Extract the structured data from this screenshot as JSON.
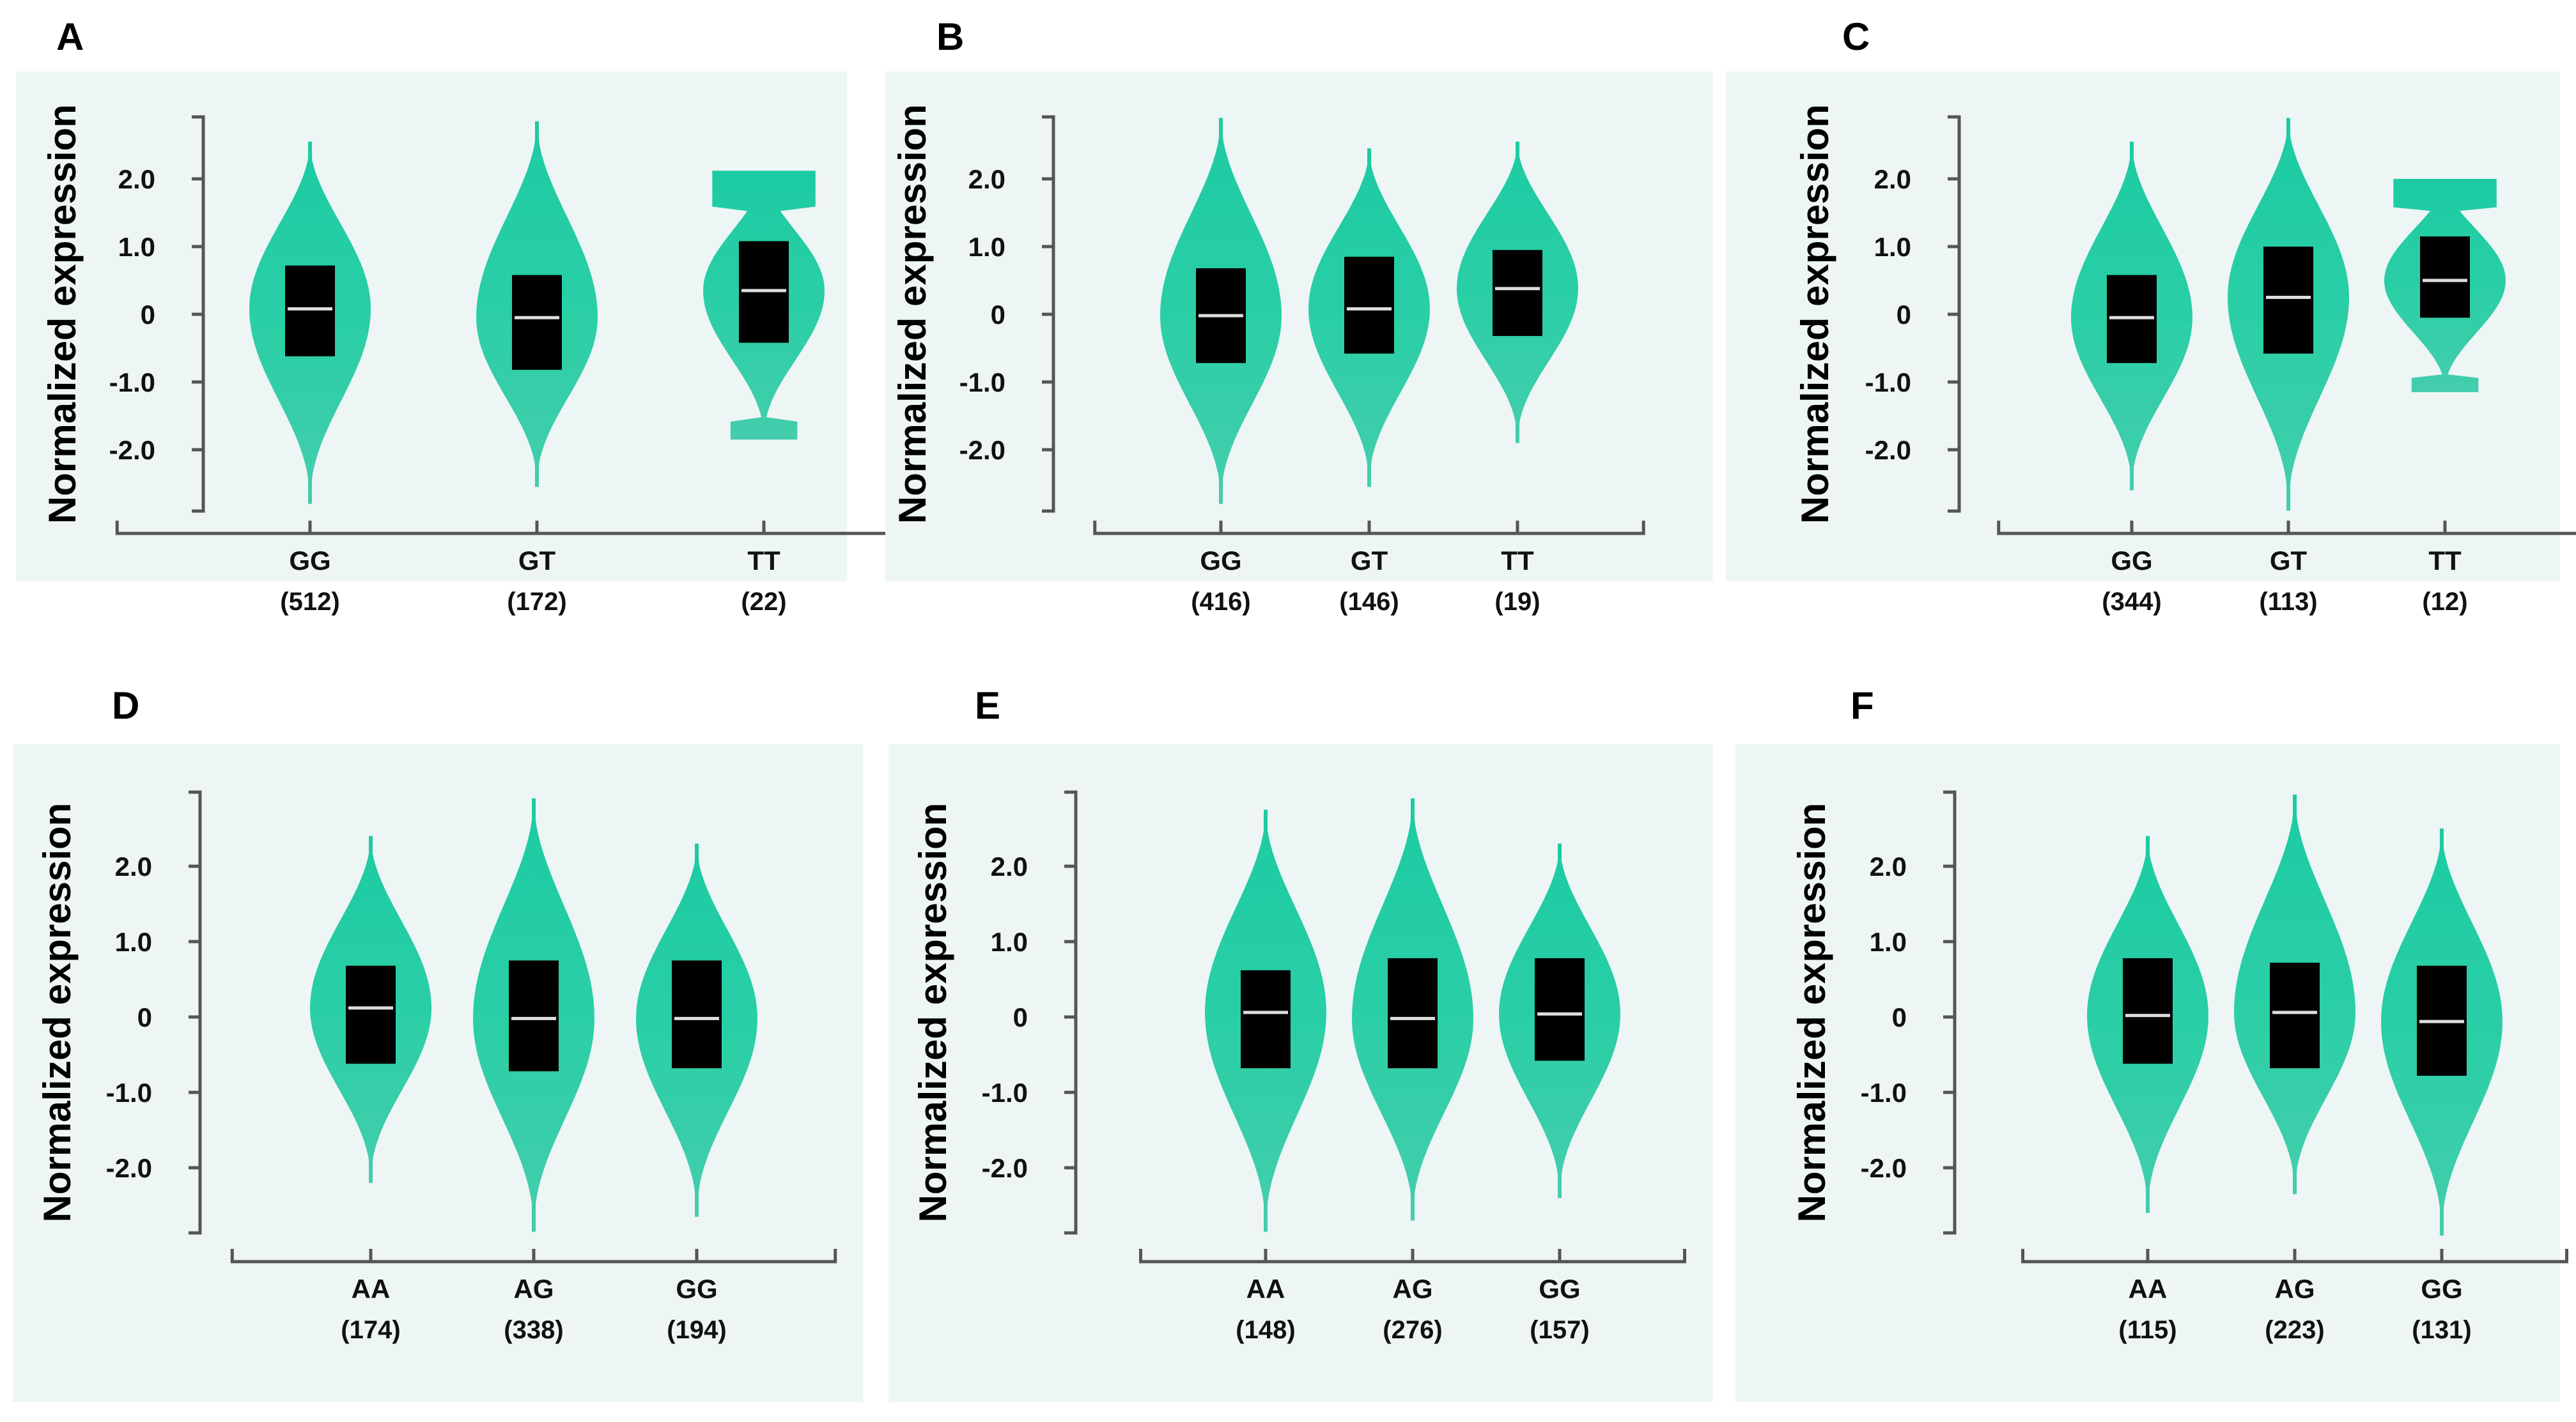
{
  "colors": {
    "violin_top": "#1ccba3",
    "violin_bottom": "#3fcfaa",
    "panel_background": "#eef5f5",
    "box_fill": "#000000",
    "median_line": "#dddddd",
    "axis": "#555555"
  },
  "chart_data": [
    {
      "panel": "A",
      "type": "violin",
      "ylabel": "Normalized expression",
      "ylim": [
        -2.9,
        2.9
      ],
      "yticks": [
        2.0,
        1.0,
        0,
        -1.0,
        -2.0
      ],
      "ytick_labels": [
        "2.0",
        "1.0",
        "0",
        "-1.0",
        "-2.0"
      ],
      "categories": [
        "GG",
        "GT",
        "TT"
      ],
      "counts": [
        "(512)",
        "(172)",
        "(22)"
      ],
      "groups": [
        {
          "min": -2.8,
          "max": 2.55,
          "q1": -0.62,
          "q3": 0.72,
          "median": 0.08
        },
        {
          "min": -2.55,
          "max": 2.85,
          "q1": -0.82,
          "q3": 0.58,
          "median": -0.05
        },
        {
          "min": -1.85,
          "max": 2.12,
          "q1": -0.42,
          "q3": 1.08,
          "median": 0.35
        }
      ]
    },
    {
      "panel": "B",
      "type": "violin",
      "ylabel": "Normalized expression",
      "ylim": [
        -2.9,
        2.9
      ],
      "yticks": [
        2.0,
        1.0,
        0,
        -1.0,
        -2.0
      ],
      "ytick_labels": [
        "2.0",
        "1.0",
        "0",
        "-1.0",
        "-2.0"
      ],
      "categories": [
        "GG",
        "GT",
        "TT"
      ],
      "counts": [
        "(416)",
        "(146)",
        "(19)"
      ],
      "groups": [
        {
          "min": -2.8,
          "max": 2.9,
          "q1": -0.72,
          "q3": 0.68,
          "median": -0.02
        },
        {
          "min": -2.55,
          "max": 2.45,
          "q1": -0.58,
          "q3": 0.85,
          "median": 0.08
        },
        {
          "min": -1.9,
          "max": 2.55,
          "q1": -0.32,
          "q3": 0.95,
          "median": 0.38
        }
      ]
    },
    {
      "panel": "C",
      "type": "violin",
      "ylabel": "Normalized expression",
      "ylim": [
        -2.9,
        2.9
      ],
      "yticks": [
        2.0,
        1.0,
        0,
        -1.0,
        -2.0
      ],
      "ytick_labels": [
        "2.0",
        "1.0",
        "0",
        "-1.0",
        "-2.0"
      ],
      "categories": [
        "GG",
        "GT",
        "TT"
      ],
      "counts": [
        "(344)",
        "(113)",
        "(12)"
      ],
      "groups": [
        {
          "min": -2.6,
          "max": 2.55,
          "q1": -0.72,
          "q3": 0.58,
          "median": -0.05
        },
        {
          "min": -2.9,
          "max": 2.9,
          "q1": -0.58,
          "q3": 1.0,
          "median": 0.25
        },
        {
          "min": -1.15,
          "max": 2.0,
          "q1": -0.05,
          "q3": 1.15,
          "median": 0.5
        }
      ]
    },
    {
      "panel": "D",
      "type": "violin",
      "ylabel": "Normalized expression",
      "ylim": [
        -2.9,
        2.9
      ],
      "yticks": [
        2.0,
        1.0,
        0,
        -1.0,
        -2.0
      ],
      "ytick_labels": [
        "2.0",
        "1.0",
        "0",
        "-1.0",
        "-2.0"
      ],
      "categories": [
        "AA",
        "AG",
        "GG"
      ],
      "counts": [
        "(174)",
        "(338)",
        "(194)"
      ],
      "groups": [
        {
          "min": -2.2,
          "max": 2.4,
          "q1": -0.62,
          "q3": 0.68,
          "median": 0.12
        },
        {
          "min": -2.85,
          "max": 2.9,
          "q1": -0.72,
          "q3": 0.75,
          "median": -0.02
        },
        {
          "min": -2.65,
          "max": 2.3,
          "q1": -0.68,
          "q3": 0.75,
          "median": -0.02
        }
      ]
    },
    {
      "panel": "E",
      "type": "violin",
      "ylabel": "Normalized expression",
      "ylim": [
        -2.9,
        2.9
      ],
      "yticks": [
        2.0,
        1.0,
        0,
        -1.0,
        -2.0
      ],
      "ytick_labels": [
        "2.0",
        "1.0",
        "0",
        "-1.0",
        "-2.0"
      ],
      "categories": [
        "AA",
        "AG",
        "GG"
      ],
      "counts": [
        "(148)",
        "(276)",
        "(157)"
      ],
      "groups": [
        {
          "min": -2.85,
          "max": 2.75,
          "q1": -0.68,
          "q3": 0.62,
          "median": 0.06
        },
        {
          "min": -2.7,
          "max": 2.9,
          "q1": -0.68,
          "q3": 0.78,
          "median": -0.02
        },
        {
          "min": -2.4,
          "max": 2.3,
          "q1": -0.58,
          "q3": 0.78,
          "median": 0.04
        }
      ]
    },
    {
      "panel": "F",
      "type": "violin",
      "ylabel": "Normalized expression",
      "ylim": [
        -2.9,
        2.9
      ],
      "yticks": [
        2.0,
        1.0,
        0,
        -1.0,
        -2.0
      ],
      "ytick_labels": [
        "2.0",
        "1.0",
        "0",
        "-1.0",
        "-2.0"
      ],
      "categories": [
        "AA",
        "AG",
        "GG"
      ],
      "counts": [
        "(115)",
        "(223)",
        "(131)"
      ],
      "groups": [
        {
          "min": -2.6,
          "max": 2.4,
          "q1": -0.62,
          "q3": 0.78,
          "median": 0.02
        },
        {
          "min": -2.35,
          "max": 2.95,
          "q1": -0.68,
          "q3": 0.72,
          "median": 0.06
        },
        {
          "min": -2.9,
          "max": 2.5,
          "q1": -0.78,
          "q3": 0.68,
          "median": -0.06
        }
      ]
    }
  ]
}
